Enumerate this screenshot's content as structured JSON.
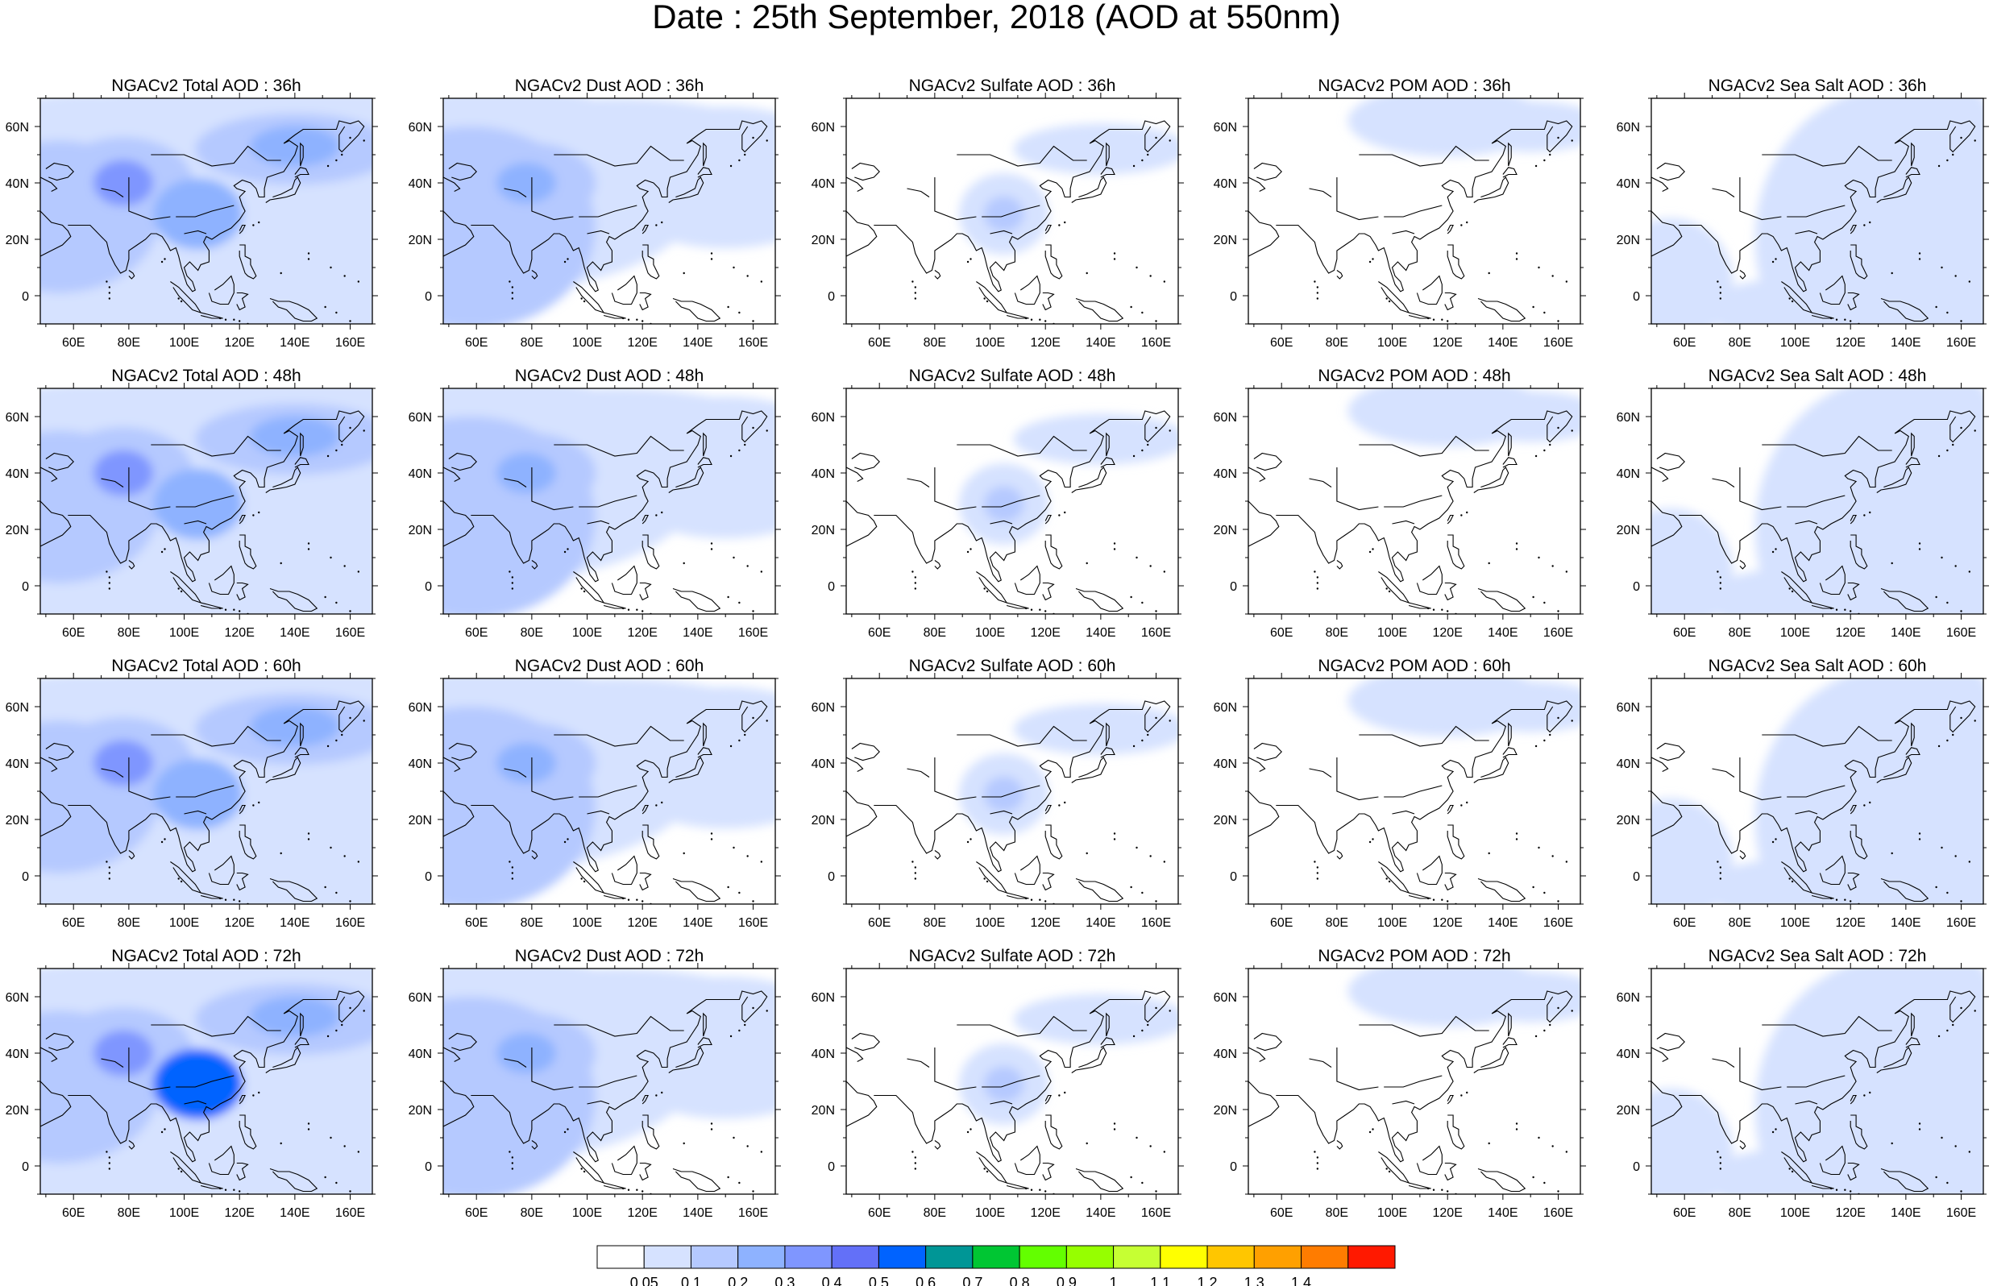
{
  "figure": {
    "title": "Date : 25th September, 2018 (AOD at 550nm)"
  },
  "panels": [
    [
      "NGACv2 Total AOD : 36h",
      "NGACv2 Dust AOD : 36h",
      "NGACv2 Sulfate AOD : 36h",
      "NGACv2 POM AOD : 36h",
      "NGACv2 Sea Salt AOD : 36h"
    ],
    [
      "NGACv2 Total AOD : 48h",
      "NGACv2 Dust AOD : 48h",
      "NGACv2 Sulfate AOD : 48h",
      "NGACv2 POM AOD : 48h",
      "NGACv2 Sea Salt AOD : 48h"
    ],
    [
      "NGACv2 Total AOD : 60h",
      "NGACv2 Dust AOD : 60h",
      "NGACv2 Sulfate AOD : 60h",
      "NGACv2 POM AOD : 60h",
      "NGACv2 Sea Salt AOD : 60h"
    ],
    [
      "NGACv2 Total AOD : 72h",
      "NGACv2 Dust AOD : 72h",
      "NGACv2 Sulfate AOD : 72h",
      "NGACv2 POM AOD : 72h",
      "NGACv2 Sea Salt  AOD : 72h"
    ]
  ],
  "axes": {
    "lon_ticks": [
      "60E",
      "80E",
      "100E",
      "120E",
      "140E",
      "160E"
    ],
    "lon_values": [
      60,
      80,
      100,
      120,
      140,
      160
    ],
    "lat_ticks": [
      "60N",
      "40N",
      "20N",
      "0"
    ],
    "lat_values": [
      60,
      40,
      20,
      0
    ],
    "lon_range": [
      48,
      168
    ],
    "lat_range": [
      -10,
      70
    ]
  },
  "colorbar": {
    "labels": [
      "0.05",
      "0.1",
      "0.2",
      "0.3",
      "0.4",
      "0.5",
      "0.6",
      "0.7",
      "0.8",
      "0.9",
      "1",
      "1.1",
      "1.2",
      "1.3",
      "1.4"
    ],
    "colors": [
      "#ffffff",
      "#d6e2ff",
      "#b5c9ff",
      "#8eb2ff",
      "#7f96ff",
      "#6370f8",
      "#0063ff",
      "#009696",
      "#00c633",
      "#63ff00",
      "#96ff00",
      "#c6ff33",
      "#ffff00",
      "#ffc600",
      "#ffa000",
      "#ff7c00",
      "#ff1900"
    ]
  },
  "chart_data": {
    "type": "heatmap",
    "variable": "AOD at 550nm",
    "date": "25th September, 2018",
    "rows_forecast_hour": [
      "36h",
      "48h",
      "60h",
      "72h"
    ],
    "columns_species": [
      "Total",
      "Dust",
      "Sulfate",
      "POM",
      "Sea Salt"
    ],
    "lon_range": [
      48,
      168
    ],
    "lat_range": [
      -10,
      70
    ],
    "levels": [
      0.05,
      0.1,
      0.2,
      0.3,
      0.4,
      0.5,
      0.6,
      0.7,
      0.8,
      0.9,
      1,
      1.1,
      1.2,
      1.3,
      1.4
    ],
    "features": {
      "Total": [
        {
          "lon": 78,
          "lat": 40,
          "aod": 0.45
        },
        {
          "lon": 105,
          "lat": 29,
          "aod": 0.3
        },
        {
          "lon": 140,
          "lat": 52,
          "aod": 0.25
        },
        {
          "lon": 105,
          "lat": 29,
          "aod": 0.7,
          "hour": "72h"
        }
      ],
      "Dust": [
        {
          "lon": 78,
          "lat": 40,
          "aod": 0.35
        },
        {
          "lon": 60,
          "lat": 25,
          "aod": 0.2
        }
      ],
      "Sulfate": [
        {
          "lon": 105,
          "lat": 29,
          "aod": 0.3
        }
      ],
      "POM": [
        {
          "lon": 120,
          "lat": 62,
          "aod": 0.1
        }
      ],
      "Sea Salt": [
        {
          "lon": 135,
          "lat": 20,
          "aod": 0.1
        }
      ]
    }
  }
}
